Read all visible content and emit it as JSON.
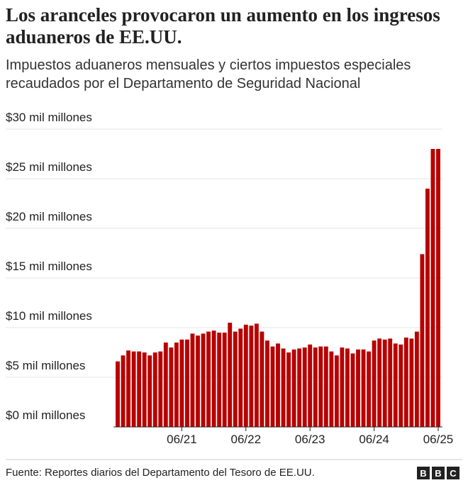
{
  "title": "Los aranceles provocaron un aumento en los ingresos aduaneros de EE.UU.",
  "subtitle": "Impuestos aduaneros mensuales y ciertos impuestos especiales recaudados por el Departamento de Seguridad Nacional",
  "source": "Fuente: Reportes diarios del Departamento del Tesoro de EE.UU.",
  "logo": [
    "B",
    "B",
    "C"
  ],
  "chart_data": {
    "type": "bar",
    "color": "#b80000",
    "grid": true,
    "categories": [
      null,
      null,
      null,
      null,
      null,
      null,
      null,
      null,
      null,
      null,
      null,
      null,
      "06/21",
      null,
      null,
      null,
      null,
      null,
      null,
      null,
      null,
      null,
      null,
      null,
      "06/22",
      null,
      null,
      null,
      null,
      null,
      null,
      null,
      null,
      null,
      null,
      null,
      "06/23",
      null,
      null,
      null,
      null,
      null,
      null,
      null,
      null,
      null,
      null,
      null,
      "06/24",
      null,
      null,
      null,
      null,
      null,
      null,
      null,
      null,
      null,
      null,
      null,
      "06/25"
    ],
    "values": [
      6.6,
      7.2,
      7.7,
      7.6,
      7.6,
      7.5,
      7.2,
      7.5,
      7.6,
      8.5,
      8.0,
      8.5,
      8.8,
      8.8,
      9.4,
      9.2,
      9.4,
      9.6,
      9.7,
      9.5,
      9.5,
      10.5,
      9.6,
      9.9,
      10.3,
      10.2,
      10.4,
      9.6,
      8.7,
      8.1,
      8.4,
      7.9,
      7.5,
      7.8,
      7.9,
      8.0,
      8.3,
      8.0,
      8.1,
      8.1,
      7.6,
      7.2,
      8.0,
      7.9,
      7.4,
      7.8,
      7.8,
      7.6,
      8.7,
      8.9,
      8.8,
      8.9,
      8.4,
      8.3,
      9.0,
      8.9,
      9.6,
      17.4,
      24.0,
      28.0,
      28.0
    ],
    "ylim": [
      0,
      30
    ],
    "yticks": [
      {
        "value": 0,
        "label": "$0 mil millones"
      },
      {
        "value": 5,
        "label": "$5 mil millones"
      },
      {
        "value": 10,
        "label": "$10 mil millones"
      },
      {
        "value": 15,
        "label": "$15 mil millones"
      },
      {
        "value": 20,
        "label": "$20 mil millones"
      },
      {
        "value": 25,
        "label": "$25 mil millones"
      },
      {
        "value": 30,
        "label": "$30 mil millones"
      }
    ]
  }
}
